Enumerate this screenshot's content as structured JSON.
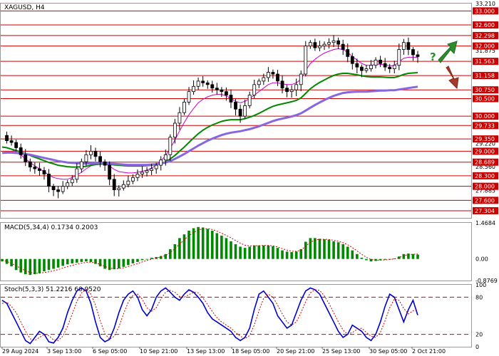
{
  "chart_data": [
    {
      "type": "candlestick",
      "title": "XAGUSD, H4",
      "ylim": [
        27.1,
        33.21
      ],
      "y_ticks": [
        "33.210",
        "31.875",
        "30.000",
        "29.220",
        "28.560",
        "27.885"
      ],
      "levels": [
        "33.000",
        "32.600",
        "32.298",
        "32.000",
        "31.563",
        "31.158",
        "30.750",
        "30.500",
        "30.000",
        "29.733",
        "29.350",
        "29.000",
        "28.689",
        "28.300",
        "28.000",
        "27.600",
        "27.304"
      ],
      "x_labels": [
        "29 Aug 2024",
        "3 Sep 13:00",
        "6 Sep 05:00",
        "10 Sep 21:00",
        "13 Sep 13:00",
        "18 Sep 05:00",
        "20 Sep 21:00",
        "25 Sep 13:00",
        "30 Sep 05:00",
        "2 Oct 21:00"
      ],
      "close_path": [
        29.45,
        29.3,
        29.25,
        29.1,
        28.9,
        28.7,
        28.55,
        28.5,
        28.45,
        28.35,
        28.0,
        27.9,
        27.85,
        28.0,
        28.1,
        28.2,
        28.5,
        28.7,
        28.9,
        29.0,
        28.85,
        28.7,
        28.6,
        28.2,
        27.9,
        27.95,
        28.05,
        28.15,
        28.25,
        28.35,
        28.4,
        28.45,
        28.5,
        28.6,
        28.75,
        28.9,
        29.4,
        29.8,
        30.1,
        30.4,
        30.7,
        30.85,
        31.0,
        30.95,
        30.9,
        30.8,
        30.75,
        30.7,
        30.6,
        30.4,
        30.2,
        30.0,
        30.3,
        30.6,
        30.9,
        31.0,
        31.1,
        31.25,
        31.2,
        31.0,
        30.8,
        30.7,
        30.75,
        30.9,
        31.2,
        32.0,
        32.1,
        31.95,
        32.0,
        32.05,
        32.1,
        32.15,
        32.05,
        31.9,
        31.7,
        31.5,
        31.4,
        31.3,
        31.35,
        31.45,
        31.6,
        31.5,
        31.4,
        31.35,
        31.45,
        31.9,
        32.1,
        31.9,
        31.75,
        31.7
      ],
      "indicators": [
        {
          "name": "EMA",
          "color": "#cc00cc",
          "values": [
            29.12,
            29.1,
            29.05,
            28.98,
            28.9,
            28.78,
            28.68,
            28.58,
            28.5,
            28.42,
            28.32,
            28.25,
            28.22,
            28.2,
            28.2,
            28.25,
            28.32,
            28.4,
            28.5,
            28.58,
            28.62,
            28.64,
            28.65,
            28.58,
            28.48,
            28.42,
            28.4,
            28.38,
            28.38,
            28.4,
            28.43,
            28.46,
            28.52,
            28.6,
            28.72,
            28.88,
            29.08,
            29.32,
            29.58,
            29.82,
            30.04,
            30.22,
            30.38,
            30.48,
            30.55,
            30.6,
            30.62,
            30.62,
            30.58,
            30.5,
            30.42,
            30.38,
            30.42,
            30.5,
            30.6,
            30.7,
            30.8,
            30.9,
            30.95,
            30.95,
            30.92,
            30.9,
            30.9,
            30.95,
            31.05,
            31.3,
            31.5,
            31.62,
            31.72,
            31.8,
            31.85,
            31.9,
            31.92,
            31.9,
            31.82,
            31.7,
            31.6,
            31.5,
            31.45,
            31.45,
            31.48,
            31.48,
            31.46,
            31.44,
            31.44,
            31.55,
            31.65,
            31.68,
            31.68,
            31.68
          ]
        },
        {
          "name": "EMA",
          "color": "#008800",
          "values": [
            29.12,
            29.1,
            29.06,
            29.02,
            28.98,
            28.93,
            28.88,
            28.83,
            28.78,
            28.73,
            28.68,
            28.64,
            28.6,
            28.58,
            28.56,
            28.55,
            28.55,
            28.56,
            28.57,
            28.6,
            28.62,
            28.63,
            28.64,
            28.63,
            28.61,
            28.6,
            28.59,
            28.58,
            28.58,
            28.58,
            28.58,
            28.59,
            28.6,
            28.62,
            28.65,
            28.7,
            28.78,
            28.88,
            29.0,
            29.12,
            29.25,
            29.38,
            29.5,
            29.6,
            29.68,
            29.75,
            29.8,
            29.85,
            29.88,
            29.9,
            29.9,
            29.9,
            29.93,
            29.97,
            30.02,
            30.08,
            30.15,
            30.22,
            30.28,
            30.32,
            30.35,
            30.38,
            30.41,
            30.45,
            30.52,
            30.65,
            30.78,
            30.88,
            30.96,
            31.03,
            31.1,
            31.16,
            31.2,
            31.22,
            31.22,
            31.2,
            31.18,
            31.15,
            31.13,
            31.12,
            31.12,
            31.12,
            31.11,
            31.1,
            31.1,
            31.14,
            31.19,
            31.22,
            31.23,
            31.24
          ]
        },
        {
          "name": "EMA",
          "color": "#8866dd",
          "values": [
            28.95,
            28.96,
            28.96,
            28.95,
            28.94,
            28.92,
            28.9,
            28.87,
            28.84,
            28.81,
            28.78,
            28.75,
            28.72,
            28.7,
            28.68,
            28.67,
            28.66,
            28.65,
            28.65,
            28.65,
            28.66,
            28.66,
            28.66,
            28.65,
            28.64,
            28.63,
            28.62,
            28.61,
            28.61,
            28.61,
            28.61,
            28.61,
            28.62,
            28.63,
            28.65,
            28.68,
            28.72,
            28.78,
            28.85,
            28.92,
            29.0,
            29.08,
            29.16,
            29.23,
            29.3,
            29.36,
            29.41,
            29.46,
            29.5,
            29.53,
            29.55,
            29.57,
            29.6,
            29.63,
            29.67,
            29.71,
            29.76,
            29.81,
            29.86,
            29.9,
            29.93,
            29.96,
            29.99,
            30.03,
            30.08,
            30.16,
            30.24,
            30.32,
            30.39,
            30.46,
            30.52,
            30.58,
            30.62,
            30.66,
            30.68,
            30.69,
            30.7,
            30.7,
            30.7,
            30.71,
            30.72,
            30.73,
            30.73,
            30.74,
            30.74,
            30.76,
            30.78,
            30.8,
            30.82,
            30.84
          ]
        }
      ],
      "annotations": [
        "?"
      ]
    },
    {
      "type": "bar",
      "title": "MACD(5,34,4) 0.1734 0.2003",
      "ylim": [
        -0.8769,
        1.4684
      ],
      "y_ticks": [
        "1.4684",
        "0.00",
        "-0.8769"
      ],
      "values": [
        -0.1,
        -0.2,
        -0.3,
        -0.45,
        -0.55,
        -0.62,
        -0.65,
        -0.62,
        -0.58,
        -0.5,
        -0.45,
        -0.4,
        -0.35,
        -0.28,
        -0.22,
        -0.18,
        -0.15,
        -0.12,
        -0.1,
        -0.12,
        -0.2,
        -0.3,
        -0.4,
        -0.45,
        -0.42,
        -0.38,
        -0.32,
        -0.25,
        -0.18,
        -0.12,
        -0.05,
        0.0,
        0.05,
        0.08,
        0.12,
        0.2,
        0.4,
        0.6,
        0.85,
        1.0,
        1.15,
        1.25,
        1.3,
        1.28,
        1.22,
        1.15,
        1.05,
        0.95,
        0.85,
        0.72,
        0.6,
        0.5,
        0.45,
        0.5,
        0.55,
        0.55,
        0.55,
        0.55,
        0.52,
        0.45,
        0.35,
        0.3,
        0.28,
        0.3,
        0.4,
        0.7,
        0.85,
        0.85,
        0.82,
        0.8,
        0.78,
        0.72,
        0.68,
        0.6,
        0.5,
        0.35,
        0.2,
        0.05,
        -0.05,
        -0.1,
        -0.08,
        -0.05,
        -0.03,
        0.0,
        0.02,
        0.1,
        0.2,
        0.22,
        0.2,
        0.18
      ],
      "signal": [
        -0.05,
        -0.1,
        -0.18,
        -0.28,
        -0.38,
        -0.48,
        -0.55,
        -0.58,
        -0.58,
        -0.55,
        -0.52,
        -0.48,
        -0.43,
        -0.37,
        -0.31,
        -0.26,
        -0.21,
        -0.17,
        -0.14,
        -0.13,
        -0.16,
        -0.22,
        -0.3,
        -0.37,
        -0.4,
        -0.39,
        -0.36,
        -0.31,
        -0.25,
        -0.19,
        -0.12,
        -0.06,
        -0.01,
        0.04,
        0.08,
        0.14,
        0.26,
        0.42,
        0.6,
        0.78,
        0.95,
        1.08,
        1.18,
        1.23,
        1.23,
        1.2,
        1.13,
        1.05,
        0.96,
        0.86,
        0.75,
        0.64,
        0.56,
        0.53,
        0.54,
        0.54,
        0.55,
        0.55,
        0.53,
        0.49,
        0.42,
        0.36,
        0.32,
        0.31,
        0.36,
        0.52,
        0.68,
        0.77,
        0.8,
        0.8,
        0.79,
        0.76,
        0.72,
        0.66,
        0.58,
        0.46,
        0.33,
        0.19,
        0.07,
        -0.02,
        -0.05,
        -0.05,
        -0.04,
        -0.02,
        0.0,
        0.06,
        0.13,
        0.18,
        0.19,
        0.2
      ]
    },
    {
      "type": "line",
      "title": "Stoch(5,3,3) 51.2216 60.9520",
      "ylim": [
        0,
        100
      ],
      "y_ticks": [
        "100",
        "80",
        "20",
        "0"
      ],
      "levels": [
        80,
        20
      ],
      "series": [
        {
          "values": [
            75,
            70,
            55,
            40,
            25,
            10,
            5,
            15,
            25,
            20,
            8,
            6,
            15,
            30,
            55,
            75,
            90,
            95,
            90,
            70,
            40,
            15,
            8,
            12,
            30,
            55,
            75,
            85,
            90,
            80,
            60,
            50,
            60,
            80,
            90,
            95,
            88,
            80,
            75,
            85,
            92,
            88,
            80,
            70,
            55,
            45,
            40,
            35,
            30,
            25,
            15,
            10,
            15,
            30,
            60,
            85,
            90,
            80,
            70,
            50,
            40,
            30,
            35,
            55,
            75,
            90,
            95,
            92,
            85,
            70,
            55,
            40,
            25,
            15,
            20,
            35,
            30,
            25,
            15,
            10,
            20,
            40,
            65,
            85,
            80,
            60,
            40,
            60,
            75,
            51
          ]
        },
        {
          "values": [
            70,
            72,
            65,
            55,
            40,
            25,
            13,
            10,
            15,
            20,
            18,
            11,
            10,
            17,
            33,
            53,
            73,
            87,
            92,
            85,
            67,
            42,
            21,
            12,
            17,
            32,
            53,
            72,
            83,
            85,
            77,
            63,
            57,
            63,
            77,
            88,
            91,
            88,
            81,
            80,
            84,
            88,
            87,
            79,
            68,
            57,
            47,
            40,
            35,
            30,
            23,
            17,
            13,
            18,
            35,
            58,
            78,
            85,
            80,
            67,
            53,
            40,
            35,
            40,
            55,
            73,
            87,
            92,
            91,
            82,
            70,
            55,
            40,
            27,
            20,
            23,
            28,
            30,
            23,
            17,
            15,
            23,
            42,
            63,
            77,
            75,
            62,
            53,
            58,
            61
          ]
        }
      ]
    }
  ]
}
